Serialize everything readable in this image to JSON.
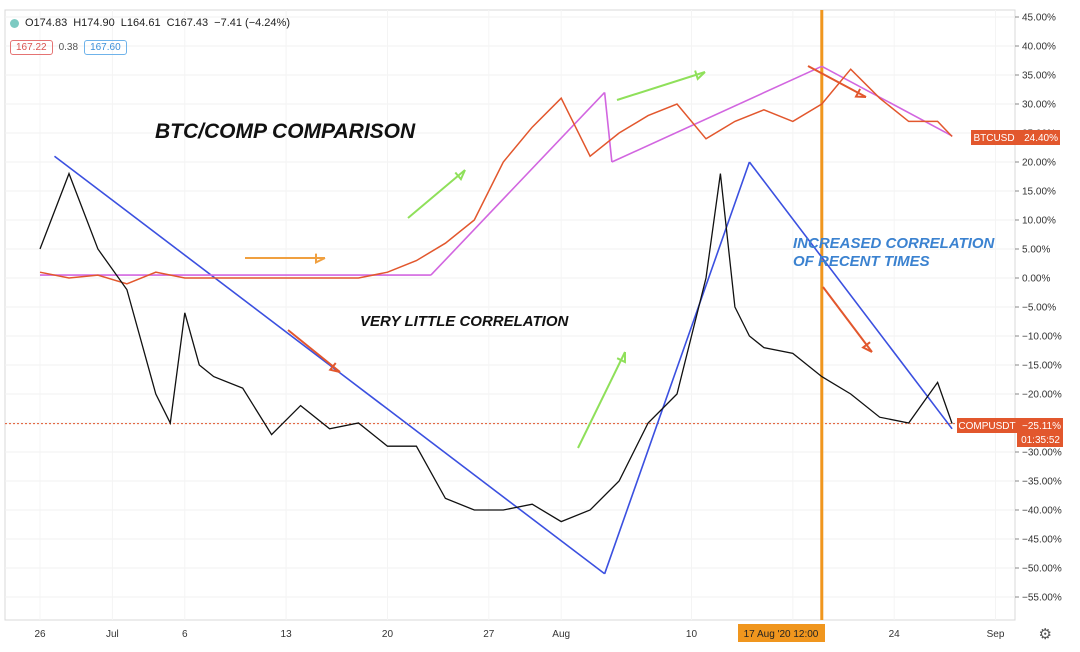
{
  "header": {
    "open": "O174.83",
    "high": "H174.90",
    "low": "L164.61",
    "close": "C167.43",
    "change": "−7.41 (−4.24%)",
    "bid": "167.22",
    "spread": "0.38",
    "ask": "167.60"
  },
  "annotations": {
    "title": "BTC/COMP COMPARISON",
    "little": "VERY LITTLE CORRELATION",
    "increased_1": "INCREASED CORRELATION",
    "increased_2": "OF RECENT TIMES"
  },
  "labels": {
    "btc_tag": "BTCUSD",
    "btc_value": "24.40%",
    "comp_tag": "COMPUSDT",
    "comp_value": "−25.11%",
    "countdown": "01:35:52",
    "crosshair_date": "17 Aug '20  12:00"
  },
  "colors": {
    "btc": "#e2572d",
    "comp": "#111111",
    "trend_blue": "#3b50e0",
    "trend_pink": "#d266e0",
    "arrow_green": "#8fe05a",
    "arrow_red": "#e2572d",
    "arrow_orange": "#f0a040",
    "crosshair": "#f0961e",
    "annot_blue": "#3b82d0"
  },
  "chart_data": {
    "type": "line",
    "x_tick_labels": [
      "26",
      "Jul",
      "6",
      "13",
      "20",
      "27",
      "Aug",
      "10",
      "17",
      "24",
      "Sep"
    ],
    "y_ticks": [
      45,
      40,
      35,
      30,
      25,
      20,
      15,
      10,
      5,
      0,
      -5,
      -10,
      -15,
      -20,
      -25,
      -30,
      -35,
      -40,
      -45,
      -50,
      -55
    ],
    "ylim": [
      -58,
      47
    ],
    "y_unit": "%",
    "series": [
      {
        "name": "BTCUSD",
        "day": [
          0,
          2,
          4,
          6,
          8,
          10,
          12,
          14,
          16,
          18,
          20,
          22,
          24,
          26,
          28,
          30,
          32,
          34,
          36,
          38,
          40,
          42,
          44,
          46,
          48,
          50,
          52,
          54,
          56,
          58,
          60,
          62,
          63
        ],
        "values": [
          1,
          0,
          0.5,
          -1,
          1,
          0,
          0,
          0,
          0,
          0,
          0,
          0,
          1,
          3,
          6,
          10,
          20,
          26,
          31,
          21,
          25,
          28,
          30,
          24,
          27,
          29,
          27,
          30,
          36,
          31,
          27,
          27,
          24.4
        ]
      },
      {
        "name": "COMPUSDT",
        "day": [
          0,
          2,
          4,
          6,
          8,
          9,
          10,
          11,
          12,
          14,
          16,
          18,
          20,
          22,
          24,
          26,
          28,
          30,
          32,
          34,
          36,
          38,
          40,
          42,
          44,
          46,
          47,
          48,
          49,
          50,
          52,
          54,
          56,
          58,
          60,
          62,
          63
        ],
        "values": [
          5,
          18,
          5,
          -2,
          -20,
          -25,
          -6,
          -15,
          -17,
          -19,
          -27,
          -22,
          -26,
          -25,
          -29,
          -29,
          -38,
          -40,
          -40,
          -39,
          -42,
          -40,
          -35,
          -25,
          -20,
          0,
          18,
          -5,
          -10,
          -12,
          -13,
          -17,
          -20,
          -24,
          -25,
          -18,
          -25.1
        ]
      }
    ],
    "trendlines": [
      {
        "color": "blue",
        "from": [
          1,
          21
        ],
        "to": [
          39,
          -51
        ]
      },
      {
        "color": "blue",
        "from": [
          39,
          -51
        ],
        "to": [
          49,
          20
        ]
      },
      {
        "color": "blue",
        "from": [
          49,
          20
        ],
        "to": [
          63,
          -26
        ]
      },
      {
        "color": "pink",
        "from": [
          0,
          0.5
        ],
        "to": [
          27,
          0.5
        ]
      },
      {
        "color": "pink",
        "from": [
          27,
          0.5
        ],
        "to": [
          39,
          32
        ]
      },
      {
        "color": "pink",
        "from": [
          39,
          32
        ],
        "to": [
          39.5,
          20
        ]
      },
      {
        "color": "pink",
        "from": [
          39.5,
          20
        ],
        "to": [
          54,
          36.5
        ]
      },
      {
        "color": "pink",
        "from": [
          54,
          36.5
        ],
        "to": [
          63,
          24.5
        ]
      }
    ],
    "reference_line": -25.11,
    "crosshair_day": 54
  }
}
